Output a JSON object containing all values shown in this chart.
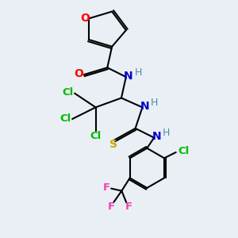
{
  "bg_color": "#eaeff5",
  "atom_colors": {
    "O": "#ff0000",
    "N": "#0000cc",
    "H": "#4a8fa0",
    "Cl": "#00bb00",
    "S": "#ccaa00",
    "F": "#ee44aa",
    "C": "#000000"
  },
  "bond_color": "#000000",
  "bond_width": 1.5,
  "figsize": [
    3.0,
    3.0
  ],
  "dpi": 100
}
